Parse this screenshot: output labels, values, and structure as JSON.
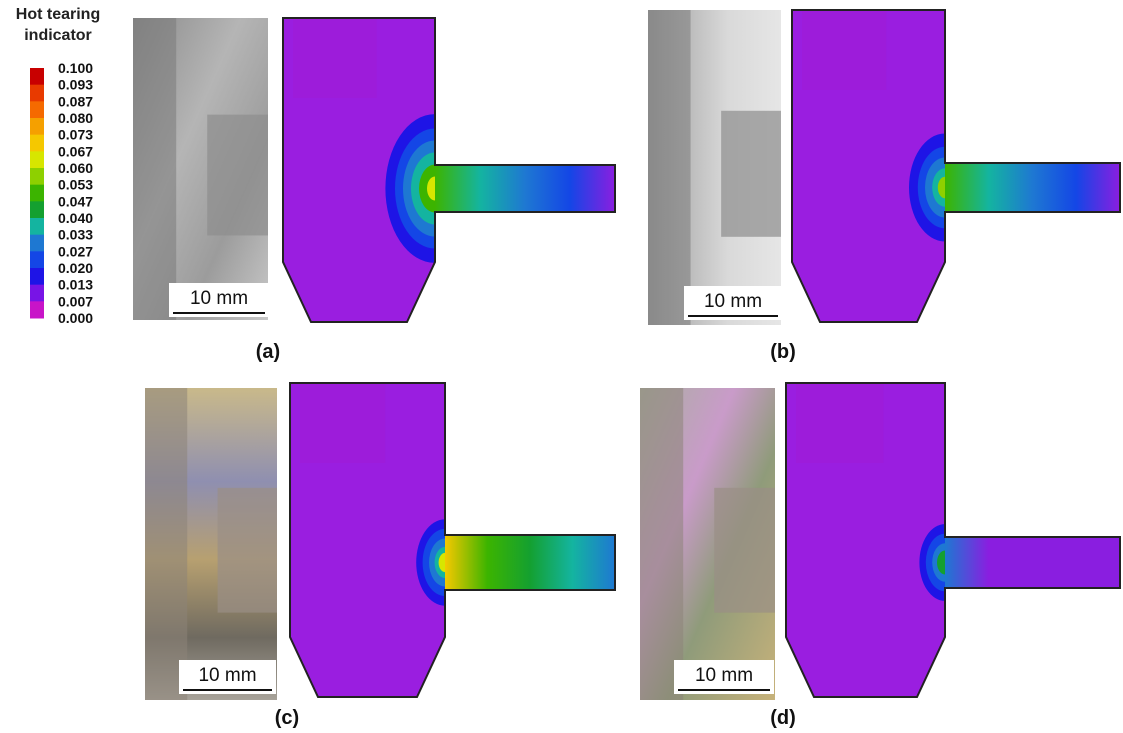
{
  "legend": {
    "title": "Hot tearing indicator",
    "labels": [
      "0.100",
      "0.093",
      "0.087",
      "0.080",
      "0.073",
      "0.067",
      "0.060",
      "0.053",
      "0.047",
      "0.040",
      "0.033",
      "0.027",
      "0.020",
      "0.013",
      "0.007",
      "0.000"
    ]
  },
  "panels": [
    {
      "label": "(a)",
      "scale_bar": "10 mm"
    },
    {
      "label": "(b)",
      "scale_bar": "10 mm"
    },
    {
      "label": "(c)",
      "scale_bar": "10 mm"
    },
    {
      "label": "(d)",
      "scale_bar": "10 mm"
    }
  ]
}
